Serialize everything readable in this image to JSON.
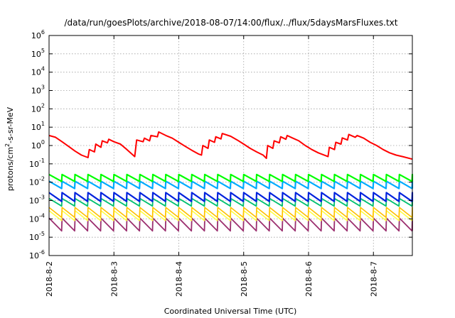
{
  "chart_data": {
    "type": "line",
    "title": "/data/run/goesPlots/archive/2018-08-07/14:00/flux/../flux/5daysMarsFluxes.txt",
    "xlabel": "Coordinated Universal Time (UTC)",
    "ylabel": "protons/cm²-s-sr-MeV",
    "ylabel_parts": {
      "base": "protons/cm",
      "sup": "2",
      "rest": "-s-sr-MeV"
    },
    "y_scale": "log",
    "ylim": [
      1e-06,
      1000000.0
    ],
    "y_tick_bases": [
      "10",
      "10",
      "10",
      "10",
      "10",
      "10",
      "10",
      "10",
      "10",
      "10",
      "10",
      "10",
      "10"
    ],
    "y_tick_exponents": [
      "-6",
      "-5",
      "-4",
      "-3",
      "-2",
      "-1",
      "0",
      "1",
      "2",
      "3",
      "4",
      "5",
      "6"
    ],
    "x_range_days": [
      0,
      5.6
    ],
    "x_ticks": [
      "2018-8-2",
      "2018-8-3",
      "2018-8-4",
      "2018-8-5",
      "2018-8-6",
      "2018-8-7"
    ],
    "grid": true,
    "series": [
      {
        "color": "#ff0000",
        "width": 2.0,
        "pattern": "slow",
        "points": [
          [
            0,
            3.5
          ],
          [
            0.1,
            2.8
          ],
          [
            0.2,
            1.6
          ],
          [
            0.3,
            0.9
          ],
          [
            0.4,
            0.5
          ],
          [
            0.5,
            0.3
          ],
          [
            0.6,
            0.22
          ],
          [
            0.62,
            0.6
          ],
          [
            0.7,
            0.45
          ],
          [
            0.72,
            1.2
          ],
          [
            0.8,
            0.8
          ],
          [
            0.82,
            1.8
          ],
          [
            0.9,
            1.4
          ],
          [
            0.92,
            2.2
          ],
          [
            1.0,
            1.6
          ],
          [
            1.1,
            1.2
          ],
          [
            1.2,
            0.6
          ],
          [
            1.32,
            0.25
          ],
          [
            1.35,
            2.0
          ],
          [
            1.45,
            1.6
          ],
          [
            1.47,
            2.5
          ],
          [
            1.55,
            1.8
          ],
          [
            1.57,
            3.5
          ],
          [
            1.67,
            3.0
          ],
          [
            1.69,
            5.5
          ],
          [
            1.8,
            3.5
          ],
          [
            1.9,
            2.5
          ],
          [
            2.0,
            1.5
          ],
          [
            2.1,
            0.9
          ],
          [
            2.2,
            0.55
          ],
          [
            2.3,
            0.35
          ],
          [
            2.35,
            0.3
          ],
          [
            2.37,
            1.0
          ],
          [
            2.45,
            0.7
          ],
          [
            2.47,
            2.0
          ],
          [
            2.55,
            1.5
          ],
          [
            2.57,
            3.0
          ],
          [
            2.65,
            2.3
          ],
          [
            2.67,
            4.5
          ],
          [
            2.8,
            3.2
          ],
          [
            2.9,
            2.0
          ],
          [
            3.0,
            1.2
          ],
          [
            3.1,
            0.7
          ],
          [
            3.2,
            0.45
          ],
          [
            3.3,
            0.3
          ],
          [
            3.35,
            0.2
          ],
          [
            3.37,
            1.0
          ],
          [
            3.45,
            0.7
          ],
          [
            3.47,
            1.8
          ],
          [
            3.55,
            1.4
          ],
          [
            3.57,
            3.0
          ],
          [
            3.65,
            2.2
          ],
          [
            3.67,
            3.5
          ],
          [
            3.75,
            2.6
          ],
          [
            3.85,
            1.8
          ],
          [
            3.95,
            1.0
          ],
          [
            4.05,
            0.6
          ],
          [
            4.15,
            0.4
          ],
          [
            4.3,
            0.25
          ],
          [
            4.32,
            0.8
          ],
          [
            4.4,
            0.6
          ],
          [
            4.42,
            1.5
          ],
          [
            4.5,
            1.2
          ],
          [
            4.52,
            2.6
          ],
          [
            4.6,
            2.0
          ],
          [
            4.62,
            4.0
          ],
          [
            4.72,
            2.8
          ],
          [
            4.75,
            3.5
          ],
          [
            4.85,
            2.5
          ],
          [
            4.95,
            1.5
          ],
          [
            5.05,
            1.0
          ],
          [
            5.15,
            0.6
          ],
          [
            5.25,
            0.4
          ],
          [
            5.35,
            0.3
          ],
          [
            5.45,
            0.25
          ],
          [
            5.6,
            0.18
          ]
        ]
      },
      {
        "color": "#00ff00",
        "width": 2.2,
        "pattern": "saw",
        "base": 0.011,
        "amp": 2.4
      },
      {
        "color": "#00aaff",
        "width": 2.2,
        "pattern": "saw",
        "base": 0.0045,
        "amp": 2.5
      },
      {
        "color": "#0022dd",
        "width": 2.2,
        "pattern": "saw",
        "base": 0.0009,
        "amp": 3.0
      },
      {
        "color": "#00c070",
        "width": 1.8,
        "pattern": "saw",
        "base": 0.0005,
        "amp": 2.6
      },
      {
        "color": "#ffc000",
        "width": 1.6,
        "pattern": "saw",
        "base": 0.00012,
        "amp": 3.5
      },
      {
        "color": "#ffff44",
        "width": 1.6,
        "pattern": "saw",
        "base": 8e-05,
        "amp": 3.5
      },
      {
        "color": "#9b2f6f",
        "width": 1.8,
        "pattern": "saw",
        "base": 2.2e-05,
        "amp": 5.0
      }
    ]
  }
}
